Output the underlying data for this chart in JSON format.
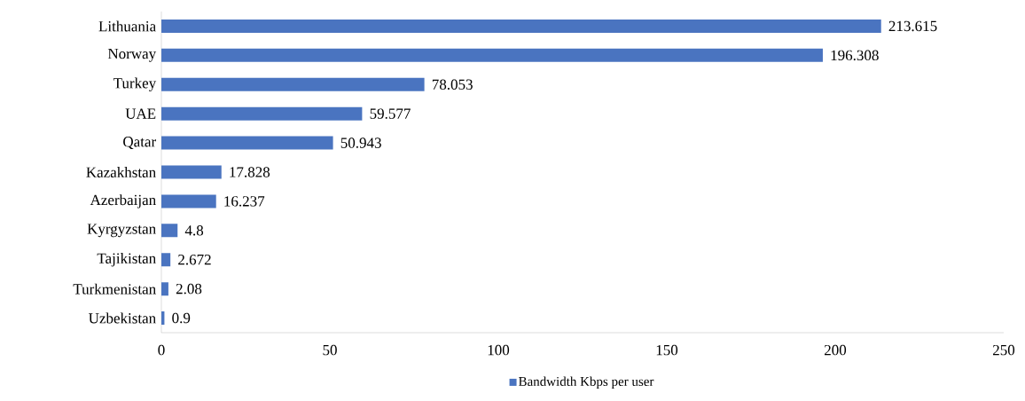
{
  "chart_data": {
    "type": "bar",
    "orientation": "horizontal",
    "categories": [
      "Lithuania",
      "Norway",
      "Turkey",
      "UAE",
      "Qatar",
      "Kazakhstan",
      "Azerbaijan",
      "Kyrgyzstan",
      "Tajikistan",
      "Turkmenistan",
      "Uzbekistan"
    ],
    "series": [
      {
        "name": "Bandwidth Kbps per user",
        "color": "#4a74c0",
        "values": [
          213.615,
          196.308,
          78.053,
          59.577,
          50.943,
          17.828,
          16.237,
          4.8,
          2.672,
          2.08,
          0.9
        ]
      }
    ],
    "xlim": [
      0,
      250
    ],
    "xticks": [
      0,
      50,
      100,
      150,
      200,
      250
    ],
    "data_labels": true,
    "legend": "bottom",
    "grid": false
  }
}
